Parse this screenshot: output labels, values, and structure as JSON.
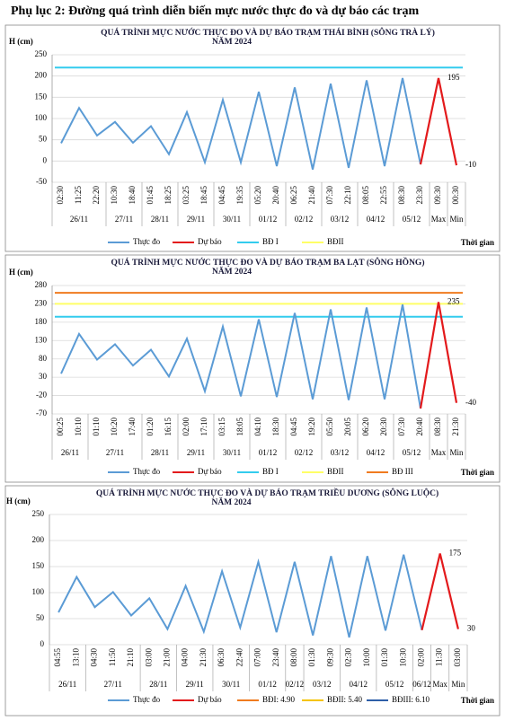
{
  "heading": "Phụ lục 2: Đường quá trình diễn biến mực nước thực đo và dự báo các trạm",
  "chart_data": [
    {
      "type": "line",
      "title": "QUÁ TRÌNH MỰC NƯỚC THỰC ĐO VÀ DỰ BÁO TRẠM THÁI BÌNH (SÔNG TRÀ LÝ)",
      "subtitle": "NĂM 2024",
      "y_label": "H (cm)",
      "x_label": "Thời gian",
      "categories": [
        "02:30",
        "11:25",
        "22:20",
        "10:30",
        "18:40",
        "01:45",
        "18:25",
        "03:25",
        "18:45",
        "04:45",
        "19:35",
        "05:20",
        "20:40",
        "06:25",
        "21:40",
        "07:30",
        "22:10",
        "08:05",
        "22:55",
        "08:30",
        "23:30",
        "09:30",
        "00:30"
      ],
      "groups": [
        {
          "label": "26/11",
          "span": 3
        },
        {
          "label": "27/11",
          "span": 2
        },
        {
          "label": "28/11",
          "span": 2
        },
        {
          "label": "29/11",
          "span": 2
        },
        {
          "label": "30/11",
          "span": 2
        },
        {
          "label": "01/12",
          "span": 2
        },
        {
          "label": "02/12",
          "span": 2
        },
        {
          "label": "03/12",
          "span": 2
        },
        {
          "label": "04/12",
          "span": 2
        },
        {
          "label": "05/12",
          "span": 2
        },
        {
          "label": "Max",
          "span": 1
        },
        {
          "label": "Min",
          "span": 1
        }
      ],
      "series": [
        {
          "name": "Thực đo",
          "color": "#5b9bd5",
          "values": [
            42,
            125,
            60,
            92,
            43,
            82,
            16,
            115,
            -3,
            144,
            -3,
            163,
            -12,
            173,
            -20,
            182,
            -16,
            190,
            -12,
            195,
            -8,
            null,
            null
          ]
        },
        {
          "name": "Dự báo",
          "color": "#e31a1c",
          "values": [
            null,
            null,
            null,
            null,
            null,
            null,
            null,
            null,
            null,
            null,
            null,
            null,
            null,
            null,
            null,
            null,
            null,
            null,
            null,
            null,
            -8,
            195,
            -10
          ],
          "value_labels": [
            null,
            null,
            null,
            null,
            null,
            null,
            null,
            null,
            null,
            null,
            null,
            null,
            null,
            null,
            null,
            null,
            null,
            null,
            null,
            null,
            null,
            "195",
            "-10"
          ]
        }
      ],
      "levels": [
        {
          "name": "BĐ I",
          "color": "#33ccee",
          "value": 220
        },
        {
          "name": "BĐII",
          "color": "#ffff66",
          "value": null
        }
      ],
      "ylim": [
        -50,
        250
      ],
      "yticks": [
        -50,
        0,
        50,
        100,
        150,
        200,
        250
      ],
      "grid": true
    },
    {
      "type": "line",
      "title": "QUÁ TRÌNH MỰC NƯỚC THỰC ĐO VÀ DỰ BÁO TRẠM BA LẠT (SÔNG HỒNG)",
      "subtitle": "NĂM 2024",
      "y_label": "H (cm)",
      "x_label": "Thời gian",
      "categories": [
        "00:25",
        "10:10",
        "01:10",
        "10:20",
        "17:40",
        "01:20",
        "16:15",
        "02:00",
        "17:10",
        "03:15",
        "18:05",
        "04:10",
        "18:30",
        "04:45",
        "19:20",
        "05:50",
        "20:05",
        "06:20",
        "20:30",
        "07:30",
        "20:40",
        "08:30",
        "21:30"
      ],
      "groups": [
        {
          "label": "26/11",
          "span": 2
        },
        {
          "label": "27/11",
          "span": 3
        },
        {
          "label": "28/11",
          "span": 2
        },
        {
          "label": "29/11",
          "span": 2
        },
        {
          "label": "30/11",
          "span": 2
        },
        {
          "label": "01/12",
          "span": 2
        },
        {
          "label": "02/12",
          "span": 2
        },
        {
          "label": "03/12",
          "span": 2
        },
        {
          "label": "04/12",
          "span": 2
        },
        {
          "label": "05/12",
          "span": 2
        },
        {
          "label": "Max",
          "span": 1
        },
        {
          "label": "Min",
          "span": 1
        }
      ],
      "series": [
        {
          "name": "Thực đo",
          "color": "#5b9bd5",
          "values": [
            40,
            148,
            78,
            120,
            62,
            105,
            32,
            135,
            -8,
            168,
            -22,
            188,
            -24,
            205,
            -30,
            215,
            -32,
            220,
            -30,
            228,
            -55,
            null,
            null
          ]
        },
        {
          "name": "Dự báo",
          "color": "#e31a1c",
          "values": [
            null,
            null,
            null,
            null,
            null,
            null,
            null,
            null,
            null,
            null,
            null,
            null,
            null,
            null,
            null,
            null,
            null,
            null,
            null,
            null,
            -55,
            235,
            -40
          ],
          "value_labels": [
            null,
            null,
            null,
            null,
            null,
            null,
            null,
            null,
            null,
            null,
            null,
            null,
            null,
            null,
            null,
            null,
            null,
            null,
            null,
            null,
            null,
            "235",
            "-40"
          ]
        }
      ],
      "levels": [
        {
          "name": "BĐ I",
          "color": "#33ccee",
          "value": 195
        },
        {
          "name": "BĐII",
          "color": "#ffff66",
          "value": 230
        },
        {
          "name": "BĐ III",
          "color": "#f07b1f",
          "value": 260
        }
      ],
      "ylim": [
        -70,
        280
      ],
      "yticks": [
        -70,
        -20,
        30,
        80,
        130,
        180,
        230,
        280
      ],
      "grid": true
    },
    {
      "type": "line",
      "title": "QUÁ TRÌNH MỰC NƯỚC THỰC ĐO VÀ DỰ BÁO TRẠM TRIỀU DƯƠNG (SÔNG LUỘC)",
      "subtitle": "NĂM 2024",
      "y_label": "H (cm)",
      "x_label": "Thời gian",
      "categories": [
        "04:55",
        "13:10",
        "04:30",
        "11:50",
        "21:10",
        "03:00",
        "21:00",
        "04:00",
        "21:30",
        "06:30",
        "22:40",
        "07:00",
        "23:40",
        "08:00",
        "01:30",
        "09:30",
        "02:30",
        "10:00",
        "01:30",
        "10:30",
        "02:00",
        "11:30",
        "03:00"
      ],
      "groups": [
        {
          "label": "26/11",
          "span": 2
        },
        {
          "label": "27/11",
          "span": 3
        },
        {
          "label": "28/11",
          "span": 2
        },
        {
          "label": "29/11",
          "span": 2
        },
        {
          "label": "30/11",
          "span": 2
        },
        {
          "label": "01/12",
          "span": 2
        },
        {
          "label": "02/12",
          "span": 1
        },
        {
          "label": "03/12",
          "span": 2
        },
        {
          "label": "04/12",
          "span": 2
        },
        {
          "label": "05/12",
          "span": 2
        },
        {
          "label": "06/12",
          "span": 1
        },
        {
          "label": "Max",
          "span": 1
        },
        {
          "label": "Min",
          "span": 1
        }
      ],
      "series": [
        {
          "name": "Thực đo",
          "color": "#5b9bd5",
          "values": [
            62,
            130,
            72,
            101,
            56,
            89,
            30,
            113,
            25,
            141,
            33,
            159,
            24,
            159,
            18,
            170,
            14,
            170,
            27,
            173,
            28,
            null,
            null
          ]
        },
        {
          "name": "Dự báo",
          "color": "#e31a1c",
          "values": [
            null,
            null,
            null,
            null,
            null,
            null,
            null,
            null,
            null,
            null,
            null,
            null,
            null,
            null,
            null,
            null,
            null,
            null,
            null,
            null,
            28,
            175,
            30
          ],
          "value_labels": [
            null,
            null,
            null,
            null,
            null,
            null,
            null,
            null,
            null,
            null,
            null,
            null,
            null,
            null,
            null,
            null,
            null,
            null,
            null,
            null,
            null,
            "175",
            "30"
          ]
        }
      ],
      "levels": [
        {
          "name": "BĐI: 4.90",
          "color": "#f07b1f",
          "value": null
        },
        {
          "name": "BĐII: 5.40",
          "color": "#f5c400",
          "value": null
        },
        {
          "name": "BĐIII: 6.10",
          "color": "#2e5fa8",
          "value": null
        }
      ],
      "ylim": [
        0,
        250
      ],
      "yticks": [
        0,
        50,
        100,
        150,
        200,
        250
      ],
      "grid": true
    }
  ]
}
